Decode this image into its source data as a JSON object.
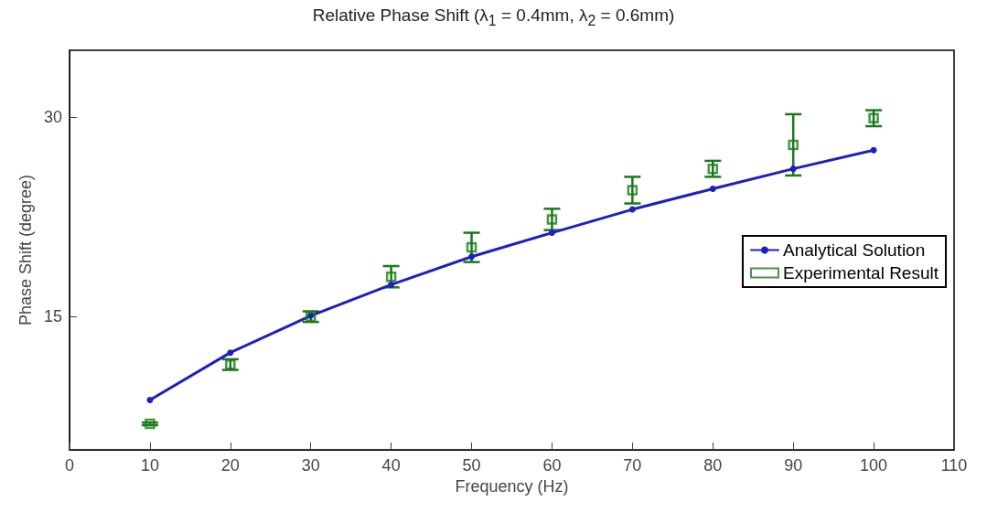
{
  "chart_data": {
    "type": "line",
    "title": "Relative Phase Shift (λ$_{1}$ = 0.4mm, λ$_{2}$ = 0.6mm)",
    "xlabel": "Frequency (Hz)",
    "ylabel": "Phase Shift (degree)",
    "x": [
      10,
      20,
      30,
      40,
      50,
      60,
      70,
      80,
      90,
      100
    ],
    "series": [
      {
        "name": "Analytical Solution",
        "color": "#1f1fbf",
        "marker": "circle",
        "values": [
          8.74,
          12.3,
          15.07,
          17.4,
          19.5,
          21.3,
          23.05,
          24.6,
          26.1,
          27.5
        ]
      },
      {
        "name": "Experimental Result",
        "type": "scatter",
        "color": "#1a7a1a",
        "marker": "square",
        "values": [
          6.95,
          11.4,
          15.0,
          18.0,
          20.2,
          22.3,
          24.5,
          26.1,
          27.9,
          29.9
        ],
        "errors": [
          0.1,
          0.4,
          0.4,
          0.8,
          1.1,
          0.8,
          1.0,
          0.6,
          2.3,
          0.6
        ]
      }
    ],
    "xlim": [
      0,
      110
    ],
    "xticks": [
      0,
      10,
      20,
      30,
      40,
      50,
      60,
      70,
      80,
      90,
      100,
      110
    ],
    "ylim": [
      5,
      35
    ],
    "yticks": [
      15,
      30
    ],
    "grid": false,
    "legend": "right"
  }
}
